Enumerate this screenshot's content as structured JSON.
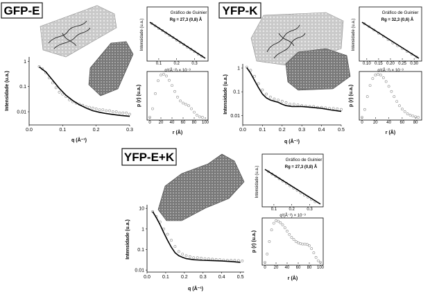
{
  "figure": {
    "labels": {
      "gfp_e": "GFP-E",
      "yfp_k": "YFP-K",
      "yfp_ek": "YFP-E+K"
    }
  },
  "chart_data": [
    {
      "id": "gfp_e_saxs",
      "type": "scatter",
      "title": "",
      "xlabel": "q (Å⁻¹)",
      "ylabel": "Intensidade (u.a.)",
      "xlim": [
        0,
        0.3
      ],
      "ylim": [
        0.003,
        1.5
      ],
      "yscale": "log",
      "xticks": [
        "0.0",
        "0.1",
        "0.2",
        "0.3"
      ],
      "yticks": [
        "0.01",
        "0.1",
        "1"
      ],
      "series": [
        {
          "kind": "points",
          "x": [
            0.03,
            0.04,
            0.05,
            0.06,
            0.07,
            0.08,
            0.09,
            0.1,
            0.11,
            0.12,
            0.13,
            0.14,
            0.15,
            0.16,
            0.17,
            0.18,
            0.19,
            0.2,
            0.21,
            0.22,
            0.23,
            0.24,
            0.25,
            0.26,
            0.27,
            0.28,
            0.29,
            0.3
          ],
          "y": [
            0.62,
            0.5,
            0.35,
            0.22,
            0.14,
            0.09,
            0.06,
            0.05,
            0.04,
            0.03,
            0.025,
            0.022,
            0.02,
            0.018,
            0.016,
            0.015,
            0.014,
            0.013,
            0.012,
            0.012,
            0.011,
            0.011,
            0.01,
            0.01,
            0.009,
            0.009,
            0.009,
            0.008
          ]
        },
        {
          "kind": "fit",
          "x": [
            0.03,
            0.05,
            0.07,
            0.09,
            0.11,
            0.13,
            0.15,
            0.17,
            0.19,
            0.21,
            0.23,
            0.25,
            0.27,
            0.29,
            0.3
          ],
          "y": [
            0.6,
            0.38,
            0.18,
            0.085,
            0.045,
            0.028,
            0.019,
            0.014,
            0.011,
            0.0095,
            0.0085,
            0.0078,
            0.0072,
            0.0068,
            0.0066
          ]
        }
      ]
    },
    {
      "id": "gfp_e_guinier",
      "type": "line",
      "title": "Gráfico de Guinier",
      "annotation": "Rg = 27,3 (0,8) Å",
      "xlabel": "q²(Å⁻²) × 10⁻³",
      "ylabel": "Intensidade (u.a.)",
      "xlim": [
        0.05,
        0.36
      ],
      "xticks": [
        "0.1",
        "0.2",
        "0.3"
      ],
      "series": [
        {
          "kind": "points",
          "x": [
            0.06,
            0.08,
            0.1,
            0.12,
            0.14,
            0.16,
            0.18,
            0.2,
            0.22,
            0.24,
            0.26,
            0.28,
            0.3,
            0.32,
            0.34
          ],
          "y": [
            0.96,
            0.9,
            0.84,
            0.79,
            0.73,
            0.67,
            0.62,
            0.56,
            0.5,
            0.45,
            0.39,
            0.34,
            0.28,
            0.22,
            0.17
          ]
        },
        {
          "kind": "fit",
          "x": [
            0.05,
            0.36
          ],
          "y": [
            0.99,
            0.12
          ]
        }
      ]
    },
    {
      "id": "gfp_e_pr",
      "type": "scatter",
      "title": "",
      "xlabel": "r (Å)",
      "ylabel": "p (r) (u.a.)",
      "xlim": [
        0,
        100
      ],
      "ylim": [
        0,
        1
      ],
      "xticks": [
        "0",
        "20",
        "40",
        "60",
        "80",
        "100"
      ],
      "series": [
        {
          "kind": "points",
          "x": [
            0,
            5,
            10,
            15,
            20,
            25,
            30,
            35,
            40,
            45,
            50,
            55,
            60,
            65,
            70,
            75,
            80,
            85,
            90,
            95
          ],
          "y": [
            0,
            0.2,
            0.55,
            0.85,
            0.98,
            1.0,
            0.96,
            0.86,
            0.74,
            0.6,
            0.47,
            0.38,
            0.33,
            0.3,
            0.27,
            0.2,
            0.12,
            0.05,
            0.01,
            0
          ]
        }
      ]
    },
    {
      "id": "yfp_k_saxs",
      "type": "scatter",
      "title": "",
      "xlabel": "q (Å⁻¹)",
      "ylabel": "Intensidade (u.a.)",
      "xlim": [
        0,
        0.5
      ],
      "ylim": [
        0.004,
        1.5
      ],
      "yscale": "log",
      "xticks": [
        "0.0",
        "0.1",
        "0.2",
        "0.3",
        "0.4",
        "0.5"
      ],
      "yticks": [
        "0.01",
        "0.1",
        "1"
      ],
      "series": [
        {
          "kind": "points",
          "x": [
            0.02,
            0.04,
            0.06,
            0.08,
            0.1,
            0.12,
            0.14,
            0.16,
            0.18,
            0.2,
            0.22,
            0.24,
            0.26,
            0.28,
            0.3,
            0.32,
            0.34,
            0.36,
            0.38,
            0.4,
            0.42,
            0.44,
            0.46,
            0.48,
            0.5
          ],
          "y": [
            1.1,
            0.8,
            0.45,
            0.22,
            0.12,
            0.08,
            0.06,
            0.05,
            0.045,
            0.04,
            0.035,
            0.03,
            0.03,
            0.028,
            0.026,
            0.025,
            0.024,
            0.024,
            0.022,
            0.022,
            0.021,
            0.02,
            0.02,
            0.019,
            0.018
          ]
        },
        {
          "kind": "fit",
          "x": [
            0.02,
            0.04,
            0.06,
            0.08,
            0.1,
            0.12,
            0.14,
            0.16,
            0.18,
            0.2,
            0.22,
            0.25,
            0.3,
            0.35,
            0.4,
            0.45,
            0.5
          ],
          "y": [
            1.05,
            0.6,
            0.3,
            0.15,
            0.08,
            0.055,
            0.045,
            0.04,
            0.036,
            0.03,
            0.026,
            0.024,
            0.024,
            0.022,
            0.02,
            0.017,
            0.015
          ]
        }
      ]
    },
    {
      "id": "yfp_k_guinier",
      "type": "line",
      "title": "Gráfico de Guinier",
      "annotation": "Rg = 32,3 (0,6) Å",
      "xlabel": "q²(Å⁻²) × 10⁻³",
      "ylabel": "Intensidade (u.a.)",
      "xlim": [
        0.08,
        0.32
      ],
      "xticks": [
        "0.10",
        "0.15",
        "0.20",
        "0.25",
        "0.30"
      ],
      "series": [
        {
          "kind": "points",
          "x": [
            0.09,
            0.11,
            0.13,
            0.15,
            0.17,
            0.19,
            0.21,
            0.23,
            0.25,
            0.27,
            0.29,
            0.31
          ],
          "y": [
            0.95,
            0.88,
            0.8,
            0.72,
            0.64,
            0.56,
            0.48,
            0.41,
            0.34,
            0.27,
            0.2,
            0.13
          ]
        },
        {
          "kind": "fit",
          "x": [
            0.08,
            0.32
          ],
          "y": [
            0.99,
            0.1
          ]
        }
      ]
    },
    {
      "id": "yfp_k_pr",
      "type": "scatter",
      "title": "",
      "xlabel": "r (Å)",
      "ylabel": "p (r) (u.a.)",
      "xlim": [
        0,
        85
      ],
      "ylim": [
        0,
        1
      ],
      "xticks": [
        "0",
        "20",
        "40",
        "60",
        "80"
      ],
      "series": [
        {
          "kind": "points",
          "x": [
            0,
            4,
            8,
            12,
            16,
            20,
            24,
            28,
            32,
            36,
            40,
            44,
            48,
            52,
            56,
            60,
            64,
            68,
            72,
            76,
            80,
            84
          ],
          "y": [
            0,
            0.18,
            0.48,
            0.74,
            0.9,
            0.98,
            1.0,
            0.98,
            0.92,
            0.83,
            0.72,
            0.6,
            0.48,
            0.37,
            0.27,
            0.19,
            0.13,
            0.08,
            0.05,
            0.03,
            0.01,
            0
          ]
        }
      ]
    },
    {
      "id": "yfp_ek_saxs",
      "type": "scatter",
      "title": "",
      "xlabel": "q (Å⁻¹)",
      "ylabel": "Intensidade (u.a.)",
      "xlim": [
        0,
        0.52
      ],
      "ylim": [
        0.008,
        15
      ],
      "yscale": "log",
      "xticks": [
        "0.0",
        "0.1",
        "0.2",
        "0.3",
        "0.4",
        "0.5"
      ],
      "yticks": [
        "0.01",
        "0.1",
        "1",
        "10"
      ],
      "series": [
        {
          "kind": "points",
          "x": [
            0.03,
            0.05,
            0.07,
            0.09,
            0.11,
            0.13,
            0.15,
            0.17,
            0.19,
            0.21,
            0.23,
            0.25,
            0.27,
            0.29,
            0.31,
            0.33,
            0.35,
            0.37,
            0.39,
            0.41,
            0.43,
            0.45,
            0.47,
            0.49,
            0.51
          ],
          "y": [
            7,
            4,
            2.2,
            1.0,
            0.55,
            0.28,
            0.14,
            0.08,
            0.06,
            0.05,
            0.045,
            0.04,
            0.04,
            0.038,
            0.036,
            0.035,
            0.034,
            0.033,
            0.032,
            0.031,
            0.03,
            0.03,
            0.03,
            0.029,
            0.028
          ]
        },
        {
          "kind": "fit",
          "x": [
            0.03,
            0.05,
            0.07,
            0.09,
            0.11,
            0.13,
            0.15,
            0.17,
            0.19,
            0.21,
            0.25,
            0.3,
            0.35,
            0.4,
            0.45,
            0.5
          ],
          "y": [
            7,
            3.5,
            1.6,
            0.65,
            0.28,
            0.13,
            0.07,
            0.05,
            0.042,
            0.036,
            0.032,
            0.03,
            0.029,
            0.028,
            0.026,
            0.024
          ]
        }
      ]
    },
    {
      "id": "yfp_ek_guinier",
      "type": "line",
      "title": "Gráfico de Guinier",
      "annotation": "Rg = 27,3 (0,8) Å",
      "xlabel": "q²(Å⁻²) × 10⁻³",
      "ylabel": "Intensidade (u.a.)",
      "xlim": [
        0.05,
        0.36
      ],
      "xticks": [
        "0.1",
        "0.2",
        "0.3"
      ],
      "series": [
        {
          "kind": "points",
          "x": [
            0.07,
            0.09,
            0.11,
            0.13,
            0.15,
            0.17,
            0.19,
            0.21,
            0.23,
            0.25,
            0.27,
            0.29,
            0.31,
            0.33
          ],
          "y": [
            0.93,
            0.87,
            0.81,
            0.75,
            0.69,
            0.63,
            0.57,
            0.51,
            0.45,
            0.39,
            0.33,
            0.28,
            0.22,
            0.16
          ]
        },
        {
          "kind": "fit",
          "x": [
            0.05,
            0.36
          ],
          "y": [
            0.99,
            0.1
          ]
        }
      ]
    },
    {
      "id": "yfp_ek_pr",
      "type": "scatter",
      "title": "",
      "xlabel": "r (Å)",
      "ylabel": "p (r) (u.a.)",
      "xlim": [
        0,
        100
      ],
      "ylim": [
        0,
        1
      ],
      "xticks": [
        "0",
        "20",
        "40",
        "60",
        "80",
        "100"
      ],
      "series": [
        {
          "kind": "points",
          "x": [
            0,
            4,
            8,
            12,
            16,
            20,
            24,
            28,
            32,
            36,
            40,
            44,
            48,
            52,
            56,
            60,
            64,
            68,
            72,
            76,
            80,
            84,
            88,
            92,
            96,
            100
          ],
          "y": [
            0,
            0.2,
            0.5,
            0.78,
            0.94,
            1.0,
            0.99,
            0.95,
            0.9,
            0.83,
            0.75,
            0.67,
            0.6,
            0.55,
            0.5,
            0.47,
            0.45,
            0.44,
            0.44,
            0.43,
            0.4,
            0.33,
            0.23,
            0.12,
            0.04,
            0
          ]
        }
      ]
    }
  ]
}
